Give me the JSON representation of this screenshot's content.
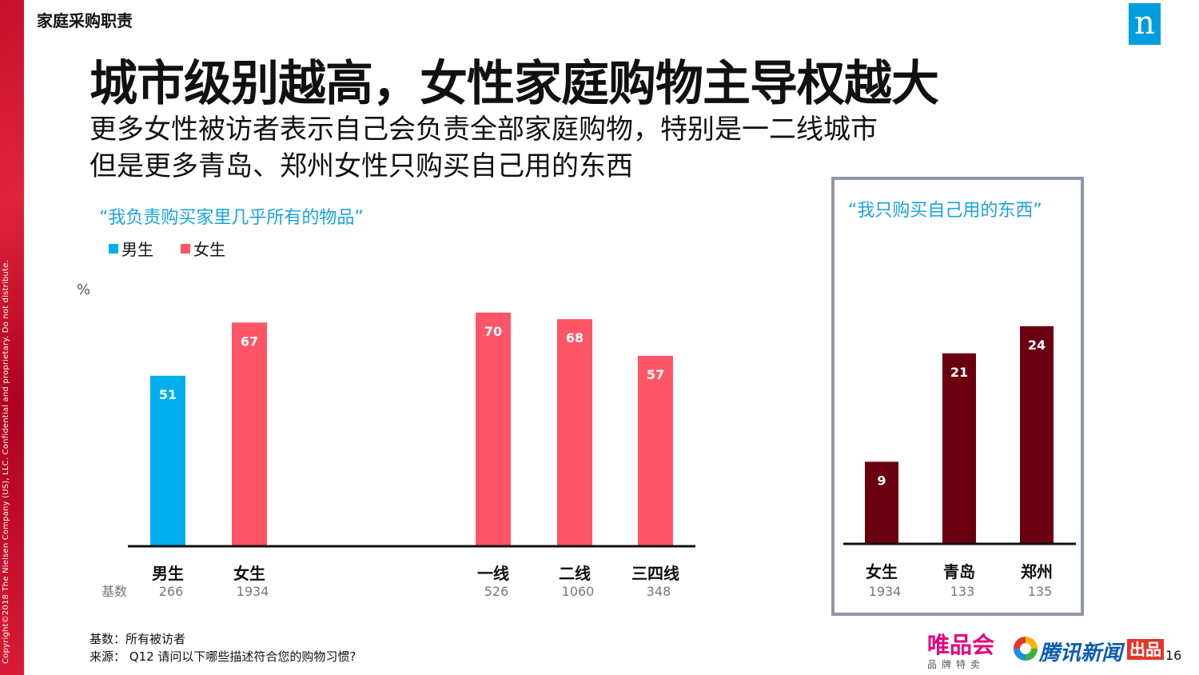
{
  "copyright": "Copyright©2018 The Nielsen Company (US), LLC. Confidential and proprietary. Do not distribute.",
  "section_label": "家庭采购职责",
  "logo_letter": "n",
  "title": "城市级别越高，女性家庭购物主导权越大",
  "subtitle_lines": [
    "更多女性被访者表示自己会负责全部家庭购物，特别是一二线城市",
    "但是更多青岛、郑州女性只购买自己用的东西"
  ],
  "colors": {
    "male": "#00aeef",
    "female": "#ff5567",
    "dark": "#6b0010",
    "accent": "#1aa3dc"
  },
  "chart_data": [
    {
      "type": "bar",
      "title": "“我负责购买家里几乎所有的物品”",
      "legend": [
        {
          "name": "男生",
          "color": "#00aeef"
        },
        {
          "name": "女生",
          "color": "#ff5567"
        }
      ],
      "ylabel": "%",
      "ylim": [
        0,
        75
      ],
      "base_label": "基数",
      "categories": [
        "男生",
        "女生",
        "一线",
        "二线",
        "三四线"
      ],
      "values": [
        51,
        67,
        70,
        68,
        57
      ],
      "colors": [
        "#00aeef",
        "#ff5567",
        "#ff5567",
        "#ff5567",
        "#ff5567"
      ],
      "bases": [
        "266",
        "1934",
        "526",
        "1060",
        "348"
      ]
    },
    {
      "type": "bar",
      "title": "“我只购买自己用的东西”",
      "ylim": [
        0,
        27
      ],
      "categories": [
        "女生",
        "青岛",
        "郑州"
      ],
      "values": [
        9,
        21,
        24
      ],
      "colors": [
        "#6b0010",
        "#6b0010",
        "#6b0010"
      ],
      "bases": [
        "1934",
        "133",
        "135"
      ]
    }
  ],
  "notes": {
    "base": "基数：所有被访者",
    "source": "来源：  Q12 请问以下哪些描述符合您的购物习惯?"
  },
  "footer": {
    "vip_name": "唯品会",
    "vip_sub": "品牌特卖",
    "tencent": "腾讯新闻",
    "tencent_badge": "出品",
    "page": "16"
  }
}
